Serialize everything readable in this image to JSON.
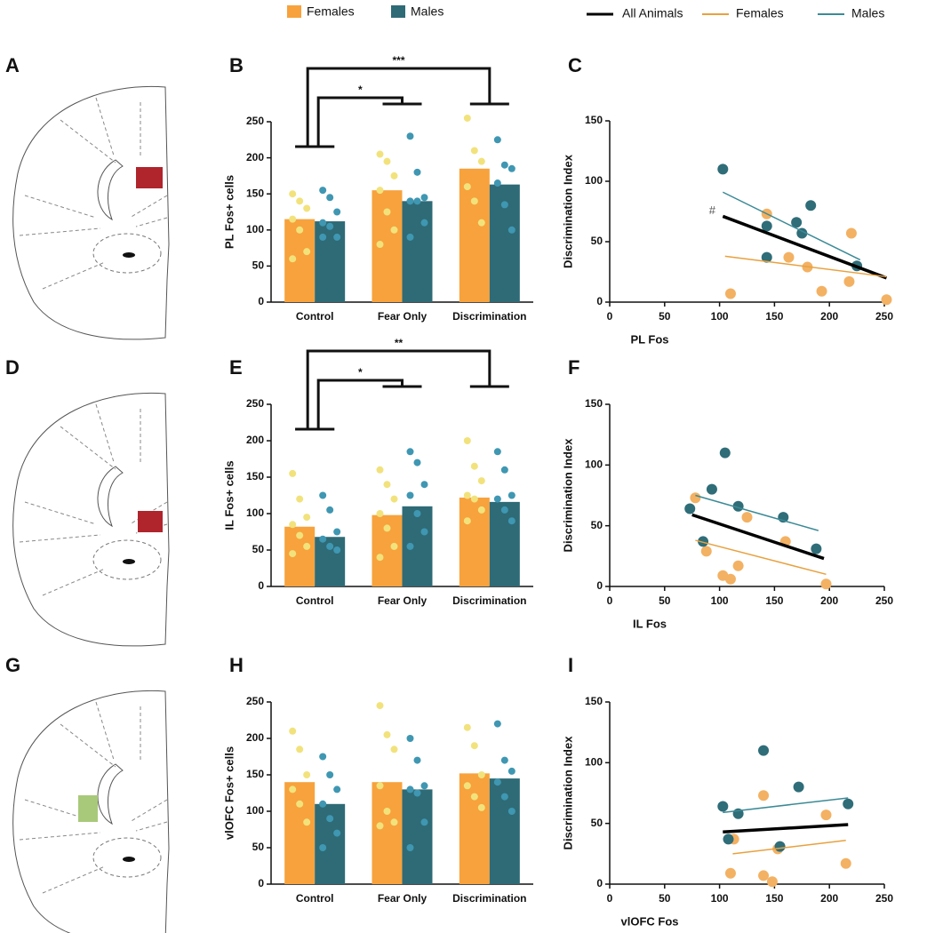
{
  "diagrams": [
    {
      "label": "A"
    },
    {
      "label": "D"
    },
    {
      "label": "G"
    }
  ],
  "chart_data": [
    {
      "type": "bar",
      "label": "B",
      "y_label": "PL Fos+ cells",
      "categories": [
        "Control",
        "Fear Only",
        "Discrimination"
      ],
      "ylim": [
        0,
        250
      ],
      "yticks": [
        0,
        50,
        100,
        150,
        200,
        250
      ],
      "series": [
        {
          "name": "Females",
          "color": "#f7a23c",
          "point_color": "#f2e27c",
          "values": [
            115,
            155,
            185
          ],
          "points": [
            [
              150,
              140,
              130,
              115,
              100,
              70,
              60
            ],
            [
              205,
              195,
              175,
              155,
              125,
              100,
              80
            ],
            [
              255,
              210,
              195,
              160,
              140,
              110
            ]
          ]
        },
        {
          "name": "Males",
          "color": "#2e6b76",
          "point_color": "#3f97b2",
          "values": [
            112,
            140,
            163
          ],
          "points": [
            [
              155,
              145,
              125,
              110,
              105,
              90,
              90
            ],
            [
              230,
              180,
              145,
              140,
              140,
              110,
              90
            ],
            [
              225,
              190,
              185,
              165,
              135,
              100
            ]
          ]
        }
      ],
      "brackets": [
        {
          "from": 0,
          "to": 1,
          "label": "*"
        },
        {
          "from": 0,
          "to": 2,
          "label": "***"
        }
      ]
    },
    {
      "type": "scatter",
      "label": "C",
      "y_label": "Discrimination Index",
      "x_label": "PL Fos",
      "annotation": "#",
      "xlim": [
        0,
        250
      ],
      "xticks": [
        0,
        50,
        100,
        150,
        200,
        250
      ],
      "ylim": [
        0,
        150
      ],
      "yticks": [
        0,
        50,
        100,
        150
      ],
      "series": [
        {
          "name": "All Animals",
          "line_color": "#000000",
          "fit_x": [
            103,
            252
          ],
          "fit_y": [
            71,
            20
          ]
        },
        {
          "name": "Females",
          "color": "#f3b163",
          "line_color": "#e8a13f",
          "x": [
            110,
            143,
            163,
            180,
            193,
            218,
            220,
            252
          ],
          "values": [
            7,
            73,
            37,
            29,
            9,
            17,
            57,
            2
          ],
          "fit_x": [
            105,
            252
          ],
          "fit_y": [
            38,
            21
          ]
        },
        {
          "name": "Males",
          "color": "#2f6d78",
          "line_color": "#3b8a96",
          "x": [
            103,
            143,
            143,
            170,
            175,
            183,
            225
          ],
          "values": [
            110,
            63,
            37,
            66,
            57,
            80,
            30
          ],
          "fit_x": [
            103,
            228
          ],
          "fit_y": [
            91,
            35
          ]
        }
      ]
    },
    {
      "type": "bar",
      "label": "E",
      "y_label": "IL Fos+ cells",
      "categories": [
        "Control",
        "Fear Only",
        "Discrimination"
      ],
      "ylim": [
        0,
        250
      ],
      "yticks": [
        0,
        50,
        100,
        150,
        200,
        250
      ],
      "series": [
        {
          "name": "Females",
          "color": "#f7a23c",
          "point_color": "#f2e27c",
          "values": [
            82,
            98,
            122
          ],
          "points": [
            [
              155,
              120,
              95,
              85,
              70,
              55,
              45
            ],
            [
              160,
              140,
              120,
              100,
              80,
              55,
              40
            ],
            [
              200,
              165,
              145,
              125,
              120,
              105,
              90
            ]
          ]
        },
        {
          "name": "Males",
          "color": "#2e6b76",
          "point_color": "#3f97b2",
          "values": [
            68,
            110,
            116
          ],
          "points": [
            [
              125,
              105,
              75,
              65,
              55,
              50
            ],
            [
              185,
              170,
              140,
              125,
              100,
              75,
              55
            ],
            [
              185,
              160,
              125,
              120,
              105,
              90
            ]
          ]
        }
      ],
      "brackets": [
        {
          "from": 0,
          "to": 1,
          "label": "*"
        },
        {
          "from": 0,
          "to": 2,
          "label": "**"
        }
      ]
    },
    {
      "type": "scatter",
      "label": "F",
      "y_label": "Discrimination Index",
      "x_label": "IL Fos",
      "xlim": [
        0,
        250
      ],
      "xticks": [
        0,
        50,
        100,
        150,
        200,
        250
      ],
      "ylim": [
        0,
        150
      ],
      "yticks": [
        0,
        50,
        100,
        150
      ],
      "series": [
        {
          "name": "All Animals",
          "line_color": "#000000",
          "fit_x": [
            75,
            195
          ],
          "fit_y": [
            59,
            23
          ]
        },
        {
          "name": "Females",
          "color": "#f3b163",
          "line_color": "#e8a13f",
          "x": [
            78,
            88,
            103,
            110,
            117,
            125,
            160,
            197
          ],
          "values": [
            73,
            29,
            9,
            6,
            17,
            57,
            37,
            2
          ],
          "fit_x": [
            78,
            197
          ],
          "fit_y": [
            38,
            10
          ]
        },
        {
          "name": "Males",
          "color": "#2f6d78",
          "line_color": "#3b8a96",
          "x": [
            73,
            85,
            93,
            105,
            117,
            158,
            188
          ],
          "values": [
            64,
            37,
            80,
            110,
            66,
            57,
            31
          ],
          "fit_x": [
            78,
            190
          ],
          "fit_y": [
            75,
            46
          ]
        }
      ]
    },
    {
      "type": "bar",
      "label": "H",
      "y_label": "vlOFC Fos+ cells",
      "categories": [
        "Control",
        "Fear Only",
        "Discrimination"
      ],
      "ylim": [
        0,
        250
      ],
      "yticks": [
        0,
        50,
        100,
        150,
        200,
        250
      ],
      "series": [
        {
          "name": "Females",
          "color": "#f7a23c",
          "point_color": "#f2e27c",
          "values": [
            140,
            140,
            152
          ],
          "points": [
            [
              210,
              185,
              150,
              130,
              110,
              85
            ],
            [
              245,
              205,
              185,
              135,
              100,
              85,
              80
            ],
            [
              215,
              190,
              150,
              135,
              120,
              105
            ]
          ]
        },
        {
          "name": "Males",
          "color": "#2e6b76",
          "point_color": "#3f97b2",
          "values": [
            110,
            130,
            145
          ],
          "points": [
            [
              175,
              150,
              130,
              110,
              90,
              70,
              50
            ],
            [
              200,
              170,
              135,
              130,
              125,
              85,
              50
            ],
            [
              220,
              170,
              155,
              140,
              120,
              100
            ]
          ]
        }
      ]
    },
    {
      "type": "scatter",
      "label": "I",
      "y_label": "Discrimination Index",
      "x_label": "vlOFC Fos",
      "xlim": [
        0,
        250
      ],
      "xticks": [
        0,
        50,
        100,
        150,
        200,
        250
      ],
      "ylim": [
        0,
        150
      ],
      "yticks": [
        0,
        50,
        100,
        150
      ],
      "series": [
        {
          "name": "All Animals",
          "line_color": "#000000",
          "fit_x": [
            103,
            217
          ],
          "fit_y": [
            43,
            49
          ]
        },
        {
          "name": "Females",
          "color": "#f3b163",
          "line_color": "#e8a13f",
          "x": [
            110,
            113,
            140,
            140,
            148,
            153,
            197,
            215
          ],
          "values": [
            9,
            37,
            73,
            7,
            2,
            29,
            57,
            17
          ],
          "fit_x": [
            112,
            215
          ],
          "fit_y": [
            25,
            36
          ]
        },
        {
          "name": "Males",
          "color": "#2f6d78",
          "line_color": "#3b8a96",
          "x": [
            103,
            108,
            117,
            140,
            155,
            172,
            217
          ],
          "values": [
            64,
            37,
            58,
            110,
            31,
            80,
            66
          ],
          "fit_x": [
            103,
            217
          ],
          "fit_y": [
            59,
            71
          ]
        }
      ]
    }
  ]
}
